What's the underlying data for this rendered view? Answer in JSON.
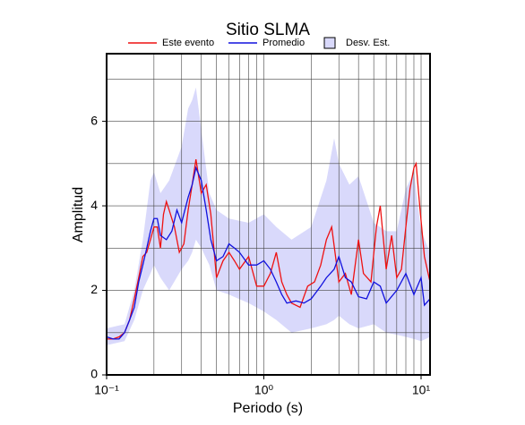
{
  "chart_data": {
    "type": "line",
    "title": "Sitio SLMA",
    "xlabel": "Periodo (s)",
    "ylabel": "Amplitud",
    "xscale": "log",
    "xlim": [
      0.1,
      11.4
    ],
    "ylim": [
      0,
      7.6
    ],
    "xticks": [
      {
        "value": 0.1,
        "label": "10⁻¹"
      },
      {
        "value": 1,
        "label": "10⁰"
      },
      {
        "value": 10,
        "label": "10¹"
      }
    ],
    "xminor": [
      0.2,
      0.3,
      0.4,
      0.5,
      0.6,
      0.7,
      0.8,
      0.9,
      2,
      3,
      4,
      5,
      6,
      7,
      8,
      9
    ],
    "yticks": [
      0,
      2,
      4,
      6
    ],
    "yminor": [
      1,
      3,
      5,
      7
    ],
    "grid": true,
    "band": {
      "name": "Desv. Est.",
      "color": "#d9d9fb",
      "x": [
        0.1,
        0.13,
        0.15,
        0.17,
        0.19,
        0.2,
        0.22,
        0.25,
        0.3,
        0.33,
        0.35,
        0.37,
        0.4,
        0.45,
        0.5,
        0.6,
        0.8,
        1.0,
        1.2,
        1.5,
        2.0,
        2.5,
        2.8,
        3.0,
        3.5,
        4.0,
        5.0,
        6.0,
        7.0,
        8.0,
        9.0,
        10.0,
        11.4
      ],
      "upper": [
        1.1,
        1.2,
        2.0,
        3.2,
        4.6,
        4.8,
        4.3,
        4.6,
        5.4,
        6.3,
        6.5,
        6.8,
        5.8,
        4.3,
        3.9,
        3.7,
        3.6,
        3.8,
        3.5,
        3.2,
        3.5,
        4.6,
        5.6,
        5.0,
        4.5,
        4.7,
        3.6,
        3.4,
        3.4,
        4.4,
        4.8,
        3.4,
        2.9
      ],
      "lower": [
        0.7,
        0.8,
        1.3,
        2.0,
        2.4,
        2.6,
        2.3,
        2.0,
        2.5,
        2.7,
        2.9,
        3.2,
        3.0,
        2.6,
        2.0,
        1.9,
        1.7,
        1.5,
        1.3,
        1.0,
        1.1,
        1.2,
        1.3,
        1.4,
        1.2,
        1.1,
        1.2,
        1.0,
        0.95,
        0.9,
        0.85,
        0.8,
        0.9
      ]
    },
    "series": [
      {
        "name": "Este evento",
        "color": "#ee1111",
        "x": [
          0.1,
          0.11,
          0.12,
          0.13,
          0.14,
          0.15,
          0.16,
          0.17,
          0.18,
          0.19,
          0.2,
          0.21,
          0.22,
          0.23,
          0.24,
          0.25,
          0.27,
          0.29,
          0.31,
          0.33,
          0.35,
          0.37,
          0.4,
          0.43,
          0.46,
          0.5,
          0.55,
          0.6,
          0.65,
          0.7,
          0.8,
          0.9,
          1.0,
          1.1,
          1.2,
          1.3,
          1.4,
          1.5,
          1.7,
          1.9,
          2.1,
          2.3,
          2.5,
          2.7,
          3.0,
          3.3,
          3.6,
          4.0,
          4.3,
          4.8,
          5.2,
          5.5,
          6.0,
          6.5,
          7.0,
          7.5,
          8.0,
          8.5,
          9.0,
          9.3,
          9.8,
          10.5,
          11.4
        ],
        "values": [
          0.85,
          0.85,
          0.9,
          1.0,
          1.3,
          1.8,
          2.3,
          2.8,
          2.9,
          3.2,
          3.5,
          3.5,
          3.0,
          3.8,
          4.1,
          3.9,
          3.5,
          2.9,
          3.1,
          3.9,
          4.5,
          5.1,
          4.3,
          4.5,
          3.8,
          2.3,
          2.7,
          2.9,
          2.7,
          2.5,
          2.8,
          2.1,
          2.1,
          2.4,
          2.9,
          2.2,
          1.9,
          1.7,
          1.6,
          2.1,
          2.2,
          2.6,
          3.2,
          3.5,
          2.2,
          2.4,
          1.9,
          3.2,
          2.4,
          2.2,
          3.5,
          4.0,
          2.5,
          3.3,
          2.3,
          2.5,
          3.5,
          4.4,
          4.9,
          5.0,
          4.0,
          2.8,
          2.2
        ]
      },
      {
        "name": "Promedio",
        "color": "#1111dd",
        "x": [
          0.1,
          0.11,
          0.12,
          0.13,
          0.14,
          0.15,
          0.16,
          0.17,
          0.18,
          0.19,
          0.2,
          0.21,
          0.22,
          0.24,
          0.26,
          0.28,
          0.3,
          0.33,
          0.35,
          0.37,
          0.4,
          0.43,
          0.46,
          0.5,
          0.55,
          0.6,
          0.65,
          0.7,
          0.8,
          0.9,
          1.0,
          1.1,
          1.2,
          1.3,
          1.4,
          1.6,
          1.8,
          2.0,
          2.3,
          2.5,
          2.8,
          3.0,
          3.3,
          3.6,
          4.0,
          4.5,
          5.0,
          5.5,
          6.0,
          7.0,
          8.0,
          9.0,
          10.0,
          10.5,
          11.4
        ],
        "values": [
          0.9,
          0.85,
          0.85,
          1.0,
          1.3,
          1.6,
          2.2,
          2.6,
          3.0,
          3.4,
          3.7,
          3.7,
          3.3,
          3.2,
          3.4,
          3.9,
          3.6,
          4.2,
          4.5,
          4.9,
          4.6,
          3.9,
          3.2,
          2.7,
          2.8,
          3.1,
          3.0,
          2.9,
          2.6,
          2.6,
          2.7,
          2.5,
          2.2,
          1.9,
          1.7,
          1.75,
          1.7,
          1.8,
          2.1,
          2.3,
          2.5,
          2.8,
          2.3,
          2.2,
          1.85,
          1.8,
          2.2,
          2.1,
          1.7,
          2.0,
          2.4,
          1.9,
          2.3,
          1.65,
          1.8
        ]
      }
    ]
  }
}
